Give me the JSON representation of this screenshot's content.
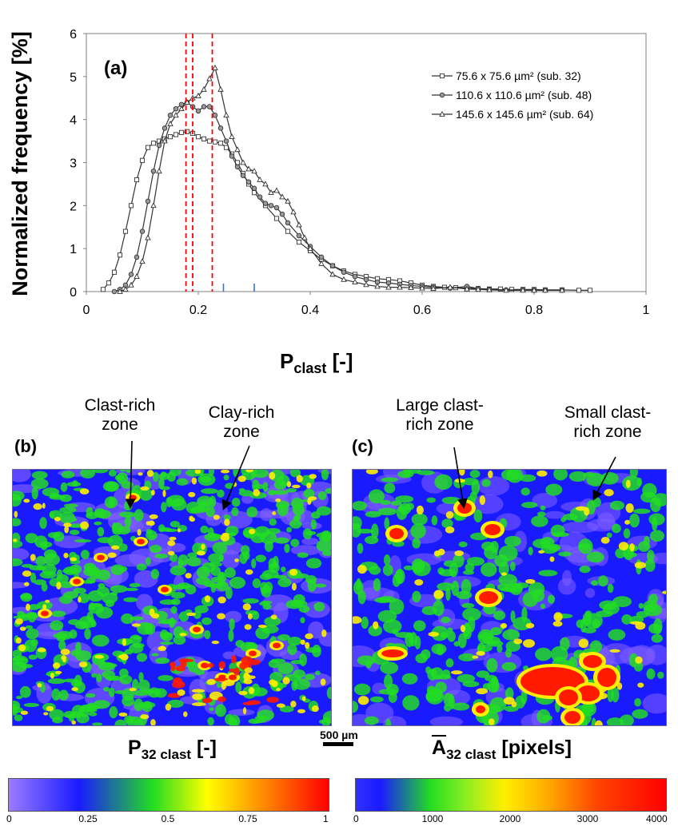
{
  "panel_a": {
    "label": "(a)",
    "ylabel": "Normalized frequency [%]",
    "xlabel_main": "P",
    "xlabel_sub": "clast",
    "xlabel_unit": "[-]"
  },
  "chart_data": {
    "type": "line",
    "xlim": [
      0,
      1
    ],
    "ylim": [
      0,
      6
    ],
    "xticks": [
      "0",
      "0.2",
      "0.4",
      "0.6",
      "0.8",
      "1"
    ],
    "yticks": [
      "0",
      "1",
      "2",
      "3",
      "4",
      "5",
      "6"
    ],
    "grid": false,
    "legend_position": "top-right",
    "series": [
      {
        "name": "75.6 x 75.6 µm² (sub. 32)",
        "marker": "square",
        "x": [
          0.03,
          0.04,
          0.05,
          0.06,
          0.07,
          0.08,
          0.09,
          0.1,
          0.11,
          0.12,
          0.13,
          0.14,
          0.15,
          0.16,
          0.17,
          0.18,
          0.19,
          0.2,
          0.21,
          0.22,
          0.23,
          0.24,
          0.25,
          0.26,
          0.27,
          0.28,
          0.29,
          0.3,
          0.32,
          0.34,
          0.36,
          0.38,
          0.4,
          0.42,
          0.44,
          0.46,
          0.48,
          0.5,
          0.52,
          0.54,
          0.56,
          0.58,
          0.6,
          0.62,
          0.64,
          0.66,
          0.68,
          0.7,
          0.72,
          0.74,
          0.76,
          0.78,
          0.8,
          0.82,
          0.85,
          0.88,
          0.9
        ],
        "y": [
          0.05,
          0.2,
          0.45,
          0.85,
          1.4,
          2.0,
          2.6,
          3.05,
          3.35,
          3.45,
          3.5,
          3.55,
          3.6,
          3.65,
          3.7,
          3.72,
          3.68,
          3.6,
          3.55,
          3.5,
          3.48,
          3.45,
          3.35,
          3.2,
          3.0,
          2.75,
          2.5,
          2.3,
          2.0,
          1.7,
          1.4,
          1.15,
          0.95,
          0.75,
          0.6,
          0.48,
          0.4,
          0.35,
          0.3,
          0.28,
          0.25,
          0.2,
          0.15,
          0.12,
          0.1,
          0.09,
          0.08,
          0.07,
          0.06,
          0.06,
          0.05,
          0.05,
          0.05,
          0.04,
          0.04,
          0.03,
          0.03
        ]
      },
      {
        "name": "110.6 x 110.6 µm² (sub. 48)",
        "marker": "circle",
        "x": [
          0.05,
          0.06,
          0.07,
          0.08,
          0.09,
          0.1,
          0.11,
          0.12,
          0.13,
          0.14,
          0.15,
          0.16,
          0.17,
          0.18,
          0.19,
          0.2,
          0.21,
          0.22,
          0.23,
          0.24,
          0.25,
          0.26,
          0.27,
          0.28,
          0.29,
          0.3,
          0.31,
          0.32,
          0.33,
          0.34,
          0.35,
          0.36,
          0.38,
          0.4,
          0.42,
          0.44,
          0.46,
          0.48,
          0.5,
          0.52,
          0.54,
          0.56,
          0.58,
          0.6,
          0.62,
          0.65,
          0.68,
          0.7,
          0.72,
          0.75,
          0.78,
          0.8,
          0.82,
          0.85
        ],
        "y": [
          0.0,
          0.05,
          0.15,
          0.4,
          0.8,
          1.4,
          2.1,
          2.8,
          3.4,
          3.8,
          4.1,
          4.25,
          4.35,
          4.4,
          4.3,
          4.2,
          4.3,
          4.3,
          4.1,
          3.8,
          3.5,
          3.15,
          2.9,
          2.7,
          2.55,
          2.4,
          2.2,
          2.05,
          2.0,
          1.95,
          1.8,
          1.6,
          1.3,
          1.05,
          0.8,
          0.6,
          0.45,
          0.35,
          0.28,
          0.22,
          0.2,
          0.17,
          0.14,
          0.12,
          0.1,
          0.08,
          0.12,
          0.07,
          0.05,
          0.04,
          0.04,
          0.03,
          0.03,
          0.03
        ]
      },
      {
        "name": "145.6 x 145.6 µm² (sub. 64)",
        "marker": "triangle",
        "x": [
          0.06,
          0.07,
          0.08,
          0.09,
          0.1,
          0.11,
          0.12,
          0.13,
          0.14,
          0.15,
          0.16,
          0.17,
          0.18,
          0.19,
          0.2,
          0.21,
          0.22,
          0.23,
          0.24,
          0.25,
          0.26,
          0.27,
          0.28,
          0.29,
          0.3,
          0.31,
          0.32,
          0.33,
          0.34,
          0.35,
          0.36,
          0.37,
          0.38,
          0.39,
          0.4,
          0.42,
          0.44,
          0.46,
          0.48,
          0.5,
          0.52,
          0.54,
          0.56,
          0.58,
          0.6,
          0.62,
          0.65,
          0.68,
          0.7,
          0.72,
          0.75,
          0.78,
          0.8,
          0.82,
          0.85
        ],
        "y": [
          0.0,
          0.05,
          0.15,
          0.35,
          0.7,
          1.25,
          2.0,
          2.8,
          3.5,
          3.9,
          4.1,
          4.25,
          4.4,
          4.5,
          4.55,
          4.7,
          4.95,
          5.2,
          4.7,
          4.1,
          3.6,
          3.3,
          3.0,
          2.85,
          2.8,
          2.6,
          2.5,
          2.3,
          2.35,
          2.2,
          2.1,
          1.85,
          1.55,
          1.25,
          1.0,
          0.65,
          0.4,
          0.28,
          0.22,
          0.16,
          0.12,
          0.1,
          0.1,
          0.09,
          0.08,
          0.07,
          0.1,
          0.06,
          0.05,
          0.04,
          0.03,
          0.03,
          0.03,
          0.03,
          0.03
        ]
      }
    ],
    "annotations": {
      "red_dashed_lines_x": [
        0.178,
        0.19,
        0.225
      ],
      "blue_tick_marks_x": [
        0.245,
        0.3
      ]
    }
  },
  "panel_b": {
    "label": "(b)",
    "zone1": [
      "Clast-rich",
      "zone"
    ],
    "zone2": [
      "Clay-rich",
      "zone"
    ],
    "cbar_title_main": "P",
    "cbar_title_sub": "32 clast",
    "cbar_title_unit": "[-]",
    "cbar_ticks": [
      "0",
      "0.25",
      "0.5",
      "0.75",
      "1"
    ]
  },
  "panel_c": {
    "label": "(c)",
    "zone1": [
      "Large clast-",
      "rich zone"
    ],
    "zone2": [
      "Small clast-",
      "rich zone"
    ],
    "cbar_title_main": "A",
    "cbar_title_sub": "32 clast",
    "cbar_title_unit": "[pixels]",
    "cbar_ticks": [
      "0",
      "1000",
      "2000",
      "3000",
      "4000"
    ]
  },
  "scale_bar": {
    "label": "500 µm"
  },
  "colors": {
    "heat_low": "#7c5cff",
    "heat_blue": "#1a1aff",
    "heat_green": "#22dd22",
    "heat_yellow": "#ffee00",
    "heat_red": "#ff1a00",
    "ref_line": "#ff0000",
    "tick_mark": "#3a6fd8"
  }
}
